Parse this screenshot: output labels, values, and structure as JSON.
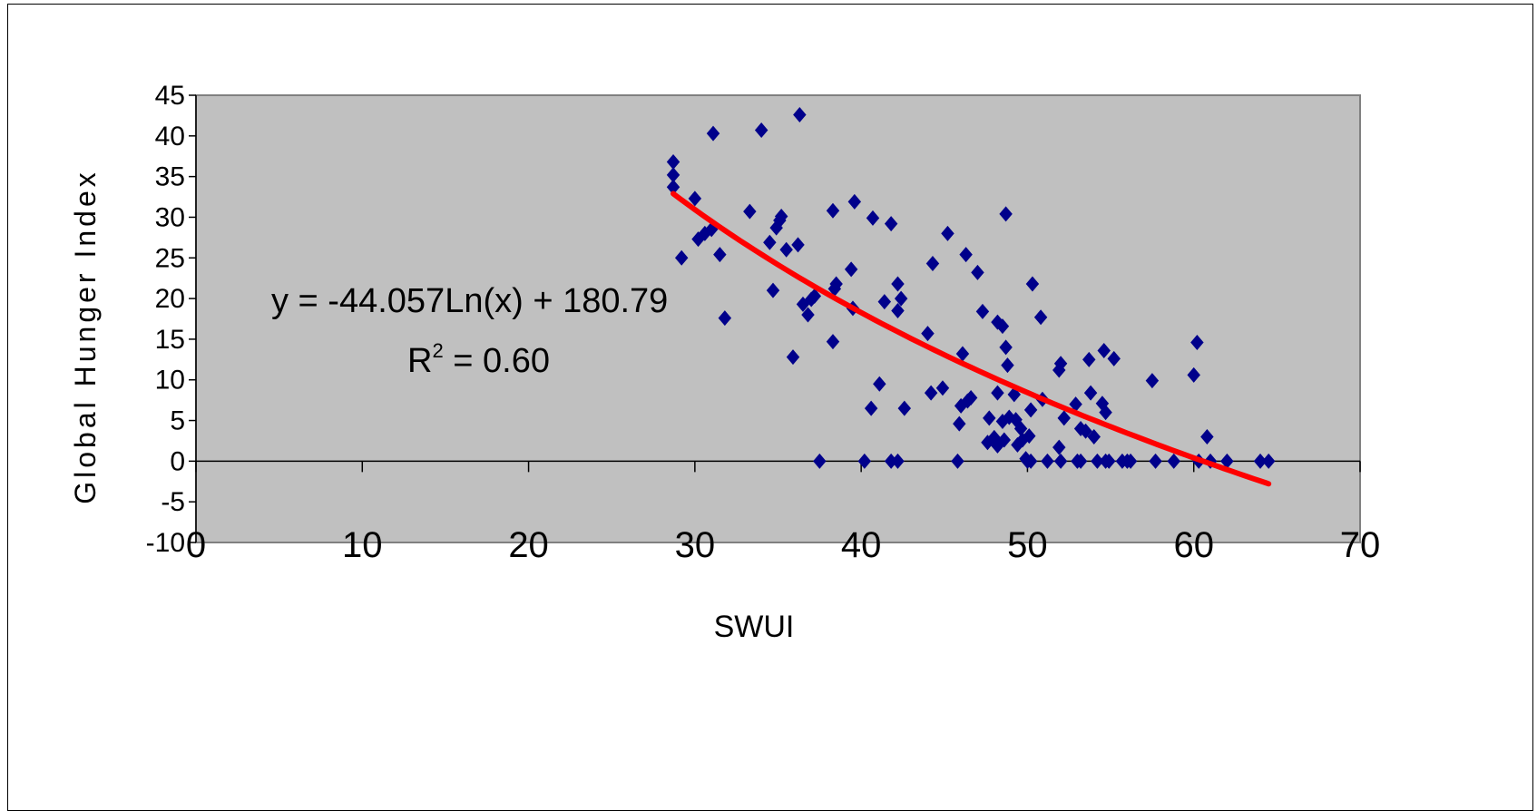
{
  "chart_data": {
    "type": "scatter",
    "xlabel": "SWUI",
    "ylabel": "Global Hunger Index",
    "xlim": [
      0,
      70
    ],
    "ylim": [
      -10,
      45
    ],
    "xticks": [
      0,
      10,
      20,
      30,
      40,
      50,
      60,
      70
    ],
    "yticks": [
      45,
      40,
      35,
      30,
      25,
      20,
      15,
      10,
      5,
      0,
      -5,
      -10
    ],
    "plot_background": "#c0c0c0",
    "marker_color": "#00008b",
    "trend_color": "#ff0000",
    "annotation": {
      "equation": "y = -44.057Ln(x) + 180.79",
      "r2_prefix": "R",
      "r2_sup": "2",
      "r2_value": " = 0.60"
    },
    "trendline": {
      "type": "log",
      "a": -44.057,
      "b": 180.79,
      "x_range": [
        28.7,
        64.5
      ]
    },
    "points": [
      [
        28.7,
        36.8
      ],
      [
        28.7,
        35.2
      ],
      [
        28.7,
        33.7
      ],
      [
        29.2,
        25.0
      ],
      [
        30.0,
        32.3
      ],
      [
        30.2,
        27.3
      ],
      [
        30.6,
        28.0
      ],
      [
        31.0,
        28.5
      ],
      [
        31.1,
        40.3
      ],
      [
        31.5,
        25.4
      ],
      [
        31.8,
        17.6
      ],
      [
        33.3,
        30.7
      ],
      [
        34.0,
        40.7
      ],
      [
        34.5,
        26.9
      ],
      [
        34.7,
        21.0
      ],
      [
        34.9,
        28.7
      ],
      [
        35.1,
        29.6
      ],
      [
        35.2,
        30.1
      ],
      [
        35.5,
        26.0
      ],
      [
        35.9,
        12.8
      ],
      [
        36.2,
        26.6
      ],
      [
        36.3,
        42.6
      ],
      [
        36.5,
        19.3
      ],
      [
        36.8,
        18.0
      ],
      [
        37.0,
        19.9
      ],
      [
        37.2,
        20.3
      ],
      [
        37.5,
        0.0
      ],
      [
        38.3,
        30.8
      ],
      [
        38.3,
        14.7
      ],
      [
        38.4,
        21.2
      ],
      [
        38.5,
        21.8
      ],
      [
        39.4,
        23.6
      ],
      [
        39.5,
        18.8
      ],
      [
        39.6,
        31.9
      ],
      [
        40.2,
        0.0
      ],
      [
        40.6,
        6.5
      ],
      [
        40.7,
        29.9
      ],
      [
        41.1,
        9.5
      ],
      [
        41.4,
        19.6
      ],
      [
        41.8,
        29.2
      ],
      [
        41.8,
        0.0
      ],
      [
        42.2,
        21.8
      ],
      [
        42.2,
        18.5
      ],
      [
        42.2,
        0.0
      ],
      [
        42.4,
        20.0
      ],
      [
        42.6,
        6.5
      ],
      [
        44.0,
        15.7
      ],
      [
        44.2,
        8.4
      ],
      [
        44.3,
        24.3
      ],
      [
        44.9,
        9.0
      ],
      [
        45.2,
        28.0
      ],
      [
        45.8,
        0.0
      ],
      [
        45.9,
        4.6
      ],
      [
        46.0,
        6.8
      ],
      [
        46.1,
        13.2
      ],
      [
        46.3,
        25.4
      ],
      [
        46.4,
        7.4
      ],
      [
        46.6,
        7.8
      ],
      [
        47.0,
        23.2
      ],
      [
        47.3,
        18.4
      ],
      [
        47.6,
        2.3
      ],
      [
        47.7,
        5.3
      ],
      [
        48.0,
        2.9
      ],
      [
        48.2,
        17.1
      ],
      [
        48.2,
        8.4
      ],
      [
        48.2,
        1.9
      ],
      [
        48.5,
        16.6
      ],
      [
        48.5,
        4.9
      ],
      [
        48.6,
        2.6
      ],
      [
        48.7,
        14.0
      ],
      [
        48.7,
        30.4
      ],
      [
        48.8,
        11.8
      ],
      [
        48.9,
        5.4
      ],
      [
        49.2,
        8.2
      ],
      [
        49.3,
        5.1
      ],
      [
        49.4,
        2.0
      ],
      [
        49.6,
        4.0
      ],
      [
        49.7,
        2.6
      ],
      [
        49.9,
        0.3
      ],
      [
        50.0,
        0.0
      ],
      [
        50.1,
        3.1
      ],
      [
        50.2,
        6.3
      ],
      [
        50.2,
        0.0
      ],
      [
        50.3,
        21.8
      ],
      [
        50.8,
        17.7
      ],
      [
        50.9,
        7.6
      ],
      [
        51.2,
        0.0
      ],
      [
        51.9,
        11.2
      ],
      [
        51.9,
        1.7
      ],
      [
        52.0,
        12.0
      ],
      [
        52.0,
        0.0
      ],
      [
        52.2,
        5.3
      ],
      [
        52.9,
        7.0
      ],
      [
        53.0,
        0.0
      ],
      [
        53.2,
        4.0
      ],
      [
        53.2,
        0.0
      ],
      [
        53.5,
        3.7
      ],
      [
        53.7,
        12.5
      ],
      [
        53.8,
        8.4
      ],
      [
        54.0,
        3.0
      ],
      [
        54.2,
        0.0
      ],
      [
        54.5,
        7.1
      ],
      [
        54.6,
        13.6
      ],
      [
        54.7,
        6.0
      ],
      [
        54.7,
        0.0
      ],
      [
        54.9,
        0.0
      ],
      [
        55.2,
        12.6
      ],
      [
        55.7,
        0.0
      ],
      [
        56.0,
        0.0
      ],
      [
        56.2,
        0.0
      ],
      [
        57.5,
        9.9
      ],
      [
        57.7,
        0.0
      ],
      [
        58.8,
        0.0
      ],
      [
        60.0,
        10.6
      ],
      [
        60.2,
        14.6
      ],
      [
        60.3,
        0.0
      ],
      [
        60.8,
        3.0
      ],
      [
        61.0,
        0.0
      ],
      [
        62.0,
        0.0
      ],
      [
        64.0,
        0.0
      ],
      [
        64.5,
        0.0
      ]
    ]
  }
}
